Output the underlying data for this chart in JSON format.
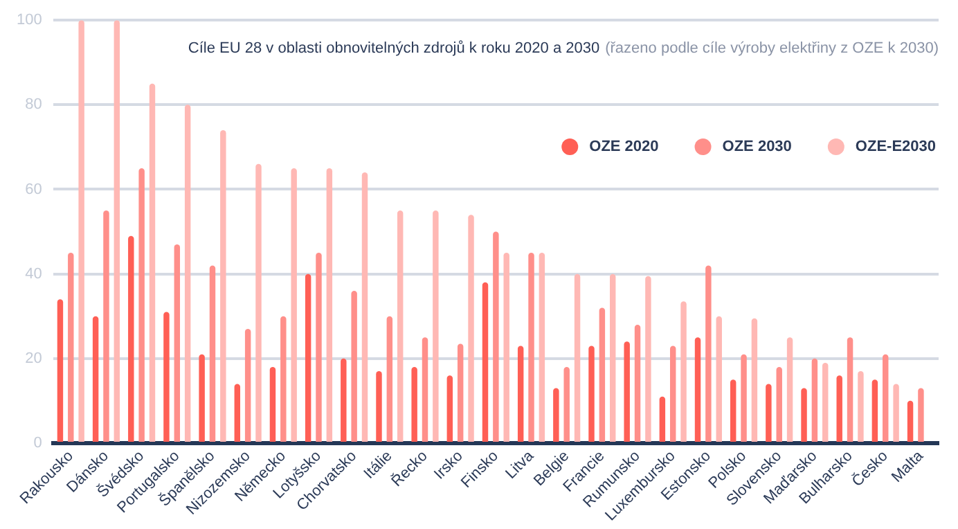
{
  "chart_data": {
    "type": "bar",
    "title": "Cíle EU 28 v oblasti obnovitelných zdrojů k roku 2020 a 2030",
    "subtitle": "(řazeno podle cíle výroby elektřiny z OZE k 2030)",
    "categories": [
      "Rakousko",
      "Dánsko",
      "Švédsko",
      "Portugalsko",
      "Španělsko",
      "Nizozemsko",
      "Německo",
      "Lotyšsko",
      "Chorvatsko",
      "Itálie",
      "Řecko",
      "Irsko",
      "Finsko",
      "Litva",
      "Belgie",
      "Francie",
      "Rumunsko",
      "Luxembursko",
      "Estonsko",
      "Polsko",
      "Slovensko",
      "Maďarsko",
      "Bulharsko",
      "Česko",
      "Malta"
    ],
    "series": [
      {
        "name": "OZE 2020",
        "color": "#ff5f55",
        "values": [
          34,
          30,
          49,
          31,
          21,
          14,
          18,
          40,
          20,
          17,
          18,
          16,
          38,
          23,
          13,
          23,
          24,
          11,
          25,
          15,
          14,
          13,
          16,
          15,
          10
        ]
      },
      {
        "name": "OZE 2030",
        "color": "#ff8f8a",
        "values": [
          45,
          55,
          65,
          47,
          42,
          27,
          30,
          45,
          36,
          30,
          25,
          23.5,
          50,
          45,
          18,
          32,
          28,
          23,
          42,
          21,
          18,
          20,
          25,
          21,
          13
        ]
      },
      {
        "name": "OZE-E2030",
        "color": "#ffb8b4",
        "values": [
          100,
          100,
          85,
          80,
          74,
          66,
          65,
          65,
          64,
          55,
          55,
          54,
          45,
          45,
          40,
          40,
          39.5,
          33.5,
          30,
          29.5,
          25,
          19,
          17,
          14,
          null
        ]
      }
    ],
    "ylim": [
      0,
      100
    ],
    "yticks": [
      0,
      20,
      40,
      60,
      80,
      100
    ],
    "grid": "y",
    "legend": "top right"
  }
}
